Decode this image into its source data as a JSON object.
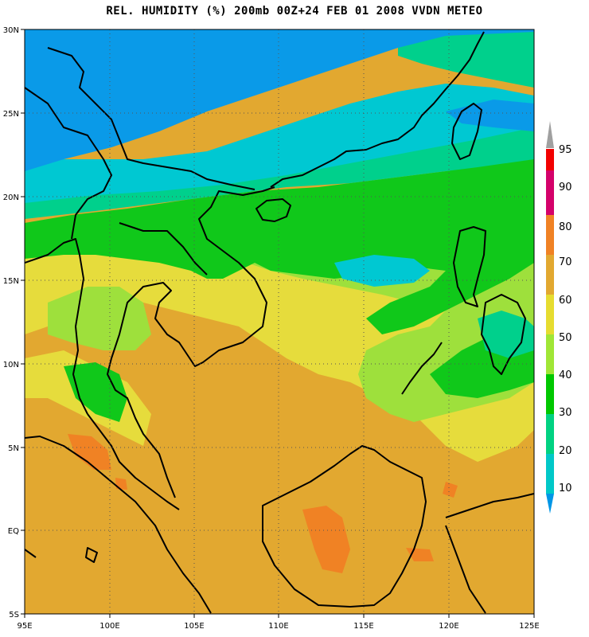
{
  "title": "REL. HUMIDITY (%) 200mb 00Z+24 FEB 01 2008 VVDN METEO",
  "lat_labels": [
    "30N",
    "25N",
    "20N",
    "15N",
    "10N",
    "5N",
    "EQ",
    "5S"
  ],
  "lon_labels": [
    "95E",
    "100E",
    "105E",
    "110E",
    "115E",
    "120E",
    "125E"
  ],
  "legend": {
    "levels": [
      "95",
      "90",
      "80",
      "70",
      "60",
      "50",
      "40",
      "30",
      "20",
      "10"
    ],
    "colors": [
      "#f20000",
      "#d4006a",
      "#f08224",
      "#e2a830",
      "#e6dc30",
      "#a0e636",
      "#00c800",
      "#00d282",
      "#00c8c8",
      "#0096e6"
    ]
  },
  "palette": {
    "sky": "#0a9ae8",
    "cyan": "#00c8d2",
    "teal": "#00d08c",
    "green": "#10c81a",
    "lightgreen": "#9ee03c",
    "yellow": "#e6dc3c",
    "orange": "#e2a830",
    "darkorange": "#f08224"
  }
}
